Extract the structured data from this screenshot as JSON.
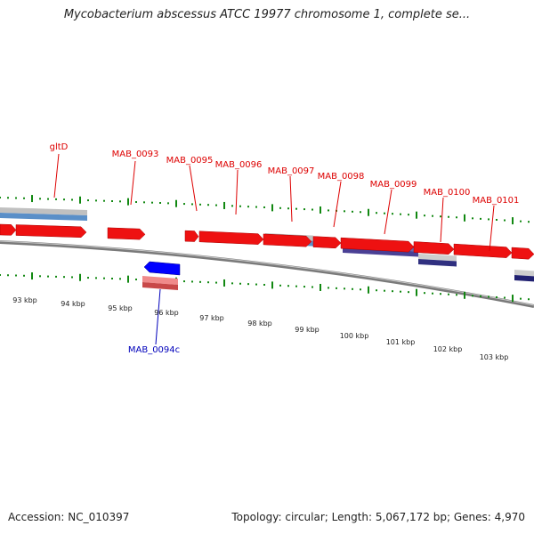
{
  "title": "Mycobacterium abscessus ATCC 19977 chromosome 1, complete se...",
  "footer": {
    "accession": "Accession: NC_010397",
    "stats": "Topology: circular; Length: 5,067,172 bp; Genes: 4,970"
  },
  "colors": {
    "forward_gene": "#ee1111",
    "reverse_gene": "#0000ff",
    "forward_label": "#dd0000",
    "reverse_label": "#0000bb",
    "tick": "#118811",
    "backbone": "#888888"
  },
  "forward_labels": [
    "gltD",
    "MAB_0093",
    "MAB_0095",
    "MAB_0096",
    "MAB_0097",
    "MAB_0098",
    "MAB_0099",
    "MAB_0100",
    "MAB_0101"
  ],
  "reverse_labels": [
    "MAB_0094c"
  ],
  "kbp_labels": [
    "93 kbp",
    "94 kbp",
    "95 kbp",
    "96 kbp",
    "97 kbp",
    "98 kbp",
    "99 kbp",
    "100 kbp",
    "101 kbp",
    "102 kbp",
    "103 kbp"
  ]
}
